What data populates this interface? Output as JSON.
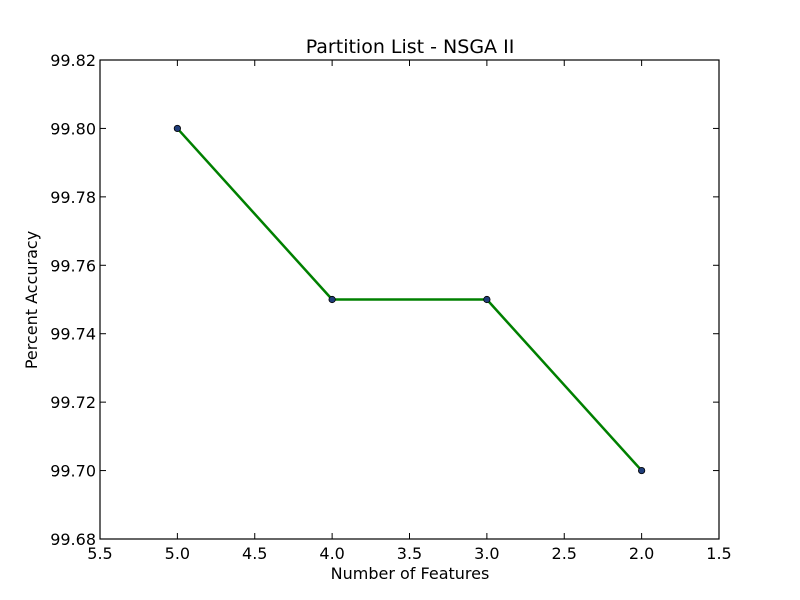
{
  "chart_data": {
    "type": "line",
    "title": "Partition List - NSGA II",
    "xlabel": "Number of Features",
    "ylabel": "Percent Accuracy",
    "xlim": [
      5.5,
      1.5
    ],
    "ylim": [
      99.68,
      99.82
    ],
    "x_inverted": true,
    "xticks": [
      "5.5",
      "5.0",
      "4.5",
      "4.0",
      "3.5",
      "3.0",
      "2.5",
      "2.0",
      "1.5"
    ],
    "yticks": [
      "99.68",
      "99.70",
      "99.72",
      "99.74",
      "99.76",
      "99.78",
      "99.80",
      "99.82"
    ],
    "grid": false,
    "series": [
      {
        "x": [
          5.0,
          4.0,
          3.0,
          2.0
        ],
        "y": [
          99.8,
          99.75,
          99.75,
          99.7
        ],
        "line_color": "#008000",
        "marker_color": "#1f3d7a",
        "markers": true
      }
    ]
  }
}
